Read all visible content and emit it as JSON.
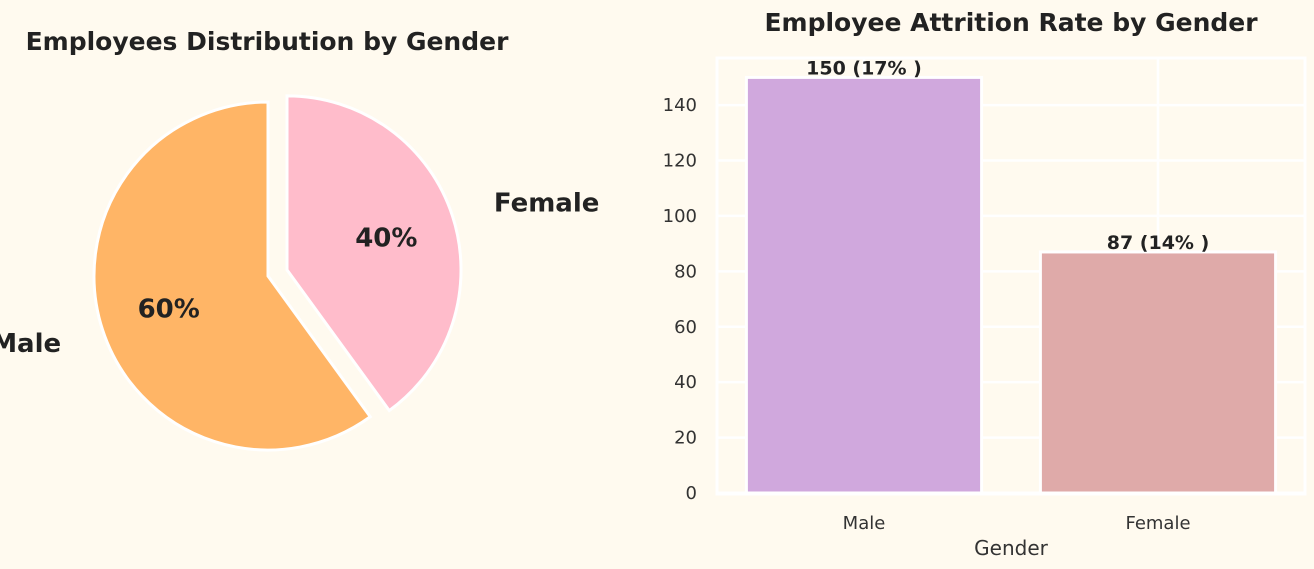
{
  "chart_data": [
    {
      "type": "pie",
      "title": "Employees Distribution by Gender",
      "labels": [
        "Male",
        "Female"
      ],
      "values": [
        60,
        40
      ],
      "percent_labels": [
        "60%",
        "40%"
      ],
      "colors": [
        "#ffb566",
        "#ffbccb"
      ],
      "exploded": "Female"
    },
    {
      "type": "bar",
      "title": "Employee Attrition Rate by Gender",
      "xlabel": "Gender",
      "ylabel": "",
      "categories": [
        "Male",
        "Female"
      ],
      "values": [
        150,
        87
      ],
      "data_labels": [
        "150 (17% )",
        "87 (14% )"
      ],
      "colors": [
        "#d0a8dd",
        "#dfaaa9"
      ],
      "yticks": [
        "0",
        "20",
        "40",
        "60",
        "80",
        "100",
        "120",
        "140"
      ],
      "ylim": [
        0,
        157
      ],
      "grid": true
    }
  ]
}
